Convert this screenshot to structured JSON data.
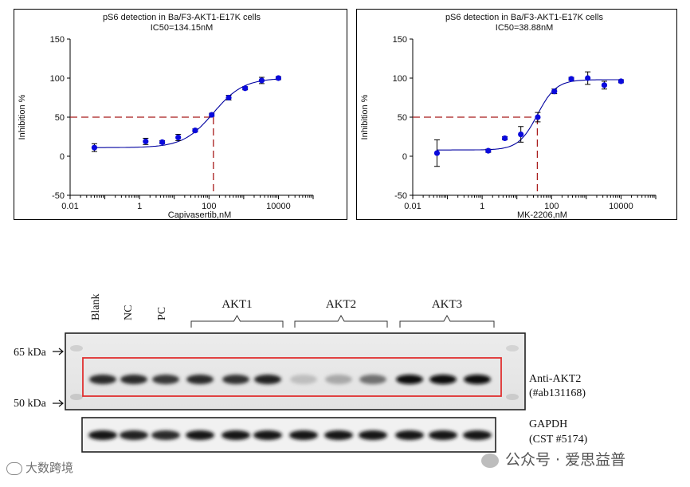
{
  "chart_data": [
    {
      "type": "scatter",
      "title": "pS6  detection  in  Ba/F3-AKT1-E17K  cells",
      "subtitle": "IC50=134.15nM",
      "xlabel": "Capivasertib,nM",
      "ylabel": "Inhibition %",
      "xscale": "log",
      "xlim": [
        0.01,
        100000
      ],
      "ylim": [
        -50,
        150
      ],
      "xticks": [
        "0.01",
        "1",
        "100",
        "10000"
      ],
      "yticks": [
        "-50",
        "0",
        "50",
        "100",
        "150"
      ],
      "ic50": 134.15,
      "fit": {
        "bottom": 11,
        "top": 100,
        "hill": 1.0
      },
      "points": [
        {
          "x": 0.05,
          "y": 11,
          "err": 5
        },
        {
          "x": 1.5,
          "y": 19,
          "err": 4
        },
        {
          "x": 4.5,
          "y": 18,
          "err": 2
        },
        {
          "x": 13,
          "y": 24,
          "err": 4
        },
        {
          "x": 40,
          "y": 33,
          "err": 2
        },
        {
          "x": 120,
          "y": 53,
          "err": 2
        },
        {
          "x": 370,
          "y": 75,
          "err": 3
        },
        {
          "x": 1100,
          "y": 87,
          "err": 2
        },
        {
          "x": 3300,
          "y": 97,
          "err": 4
        },
        {
          "x": 10000,
          "y": 100,
          "err": 2
        }
      ],
      "refline_color": "#a81b1b",
      "marker_color": "#0a0adc"
    },
    {
      "type": "scatter",
      "title": "pS6  detection  in  Ba/F3-AKT1-E17K  cells",
      "subtitle": "IC50=38.88nM",
      "xlabel": "MK-2206,nM",
      "ylabel": "Inhibition %",
      "xscale": "log",
      "xlim": [
        0.01,
        100000
      ],
      "ylim": [
        -50,
        150
      ],
      "xticks": [
        "0.01",
        "1",
        "100",
        "10000"
      ],
      "yticks": [
        "-50",
        "0",
        "50",
        "100",
        "150"
      ],
      "ic50": 38.88,
      "fit": {
        "bottom": 8,
        "top": 98,
        "hill": 1.6
      },
      "points": [
        {
          "x": 0.05,
          "y": 4,
          "err": 17
        },
        {
          "x": 1.5,
          "y": 7,
          "err": 2
        },
        {
          "x": 4.5,
          "y": 23,
          "err": 2
        },
        {
          "x": 13,
          "y": 28,
          "err": 10
        },
        {
          "x": 40,
          "y": 50,
          "err": 6
        },
        {
          "x": 120,
          "y": 83,
          "err": 3
        },
        {
          "x": 370,
          "y": 99,
          "err": 2
        },
        {
          "x": 1100,
          "y": 100,
          "err": 8
        },
        {
          "x": 3300,
          "y": 91,
          "err": 5
        },
        {
          "x": 10000,
          "y": 96,
          "err": 2
        }
      ],
      "refline_color": "#a81b1b",
      "marker_color": "#0a0adc"
    }
  ],
  "western_blot": {
    "lane_labels": [
      "Blank",
      "NC",
      "PC"
    ],
    "groups": [
      "AKT1",
      "AKT2",
      "AKT3"
    ],
    "markers": [
      "65 kDa",
      "50 kDa"
    ],
    "blot1_label": [
      "Anti-AKT2",
      "(#ab131168)"
    ],
    "blot2_label": [
      "GAPDH",
      "(CST #5174)"
    ],
    "akt2_band_intensity": [
      0.85,
      0.85,
      0.8,
      0.85,
      0.82,
      0.9,
      0.2,
      0.3,
      0.55,
      1.0,
      1.0,
      1.0
    ],
    "gapdh_band_intensity": [
      0.95,
      0.9,
      0.85,
      0.95,
      0.95,
      0.95,
      0.95,
      0.95,
      0.95,
      0.95,
      0.95,
      0.95
    ],
    "highlight_color": "#e03030"
  },
  "watermarks": {
    "left": "大数跨境",
    "right": "公众号 · 爱思益普"
  }
}
